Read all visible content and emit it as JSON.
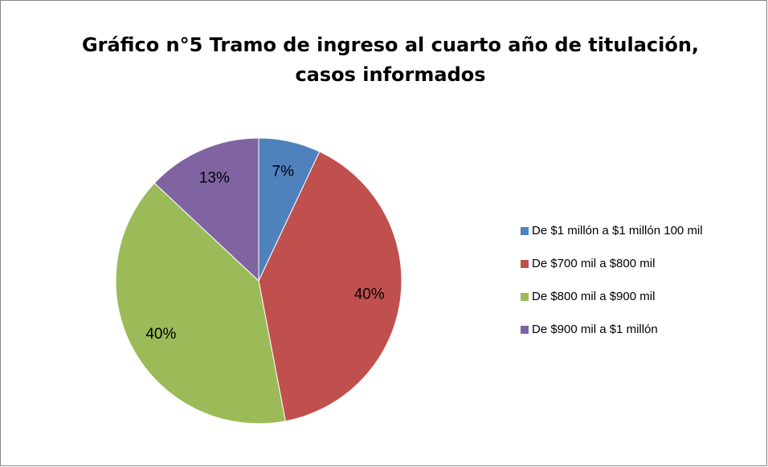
{
  "chart_data": {
    "type": "pie",
    "title": [
      "Gráfico n°5 Tramo de ingreso al cuarto año de titulación,",
      "casos informados"
    ],
    "categories": [
      "De $1 millón a $1 millón 100 mil",
      "De $700 mil a $800 mil",
      "De $800 mil a $900 mil",
      "De $900 mil a $1 millón"
    ],
    "values": [
      7,
      40,
      40,
      13
    ],
    "value_labels": [
      "7%",
      "40%",
      "40%",
      "13%"
    ],
    "colors": [
      "#4f81bd",
      "#c0504d",
      "#9bbb59",
      "#8064a2"
    ],
    "legend": "right"
  }
}
